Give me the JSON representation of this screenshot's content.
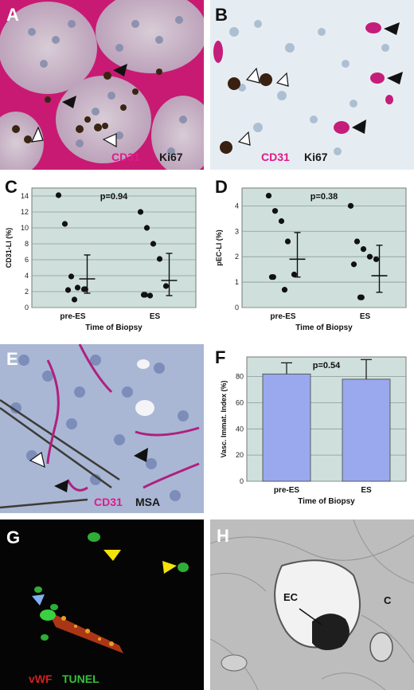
{
  "panels": {
    "A": {
      "letter": "A",
      "stain1": "CD31",
      "stain2": "Ki67"
    },
    "B": {
      "letter": "B",
      "stain1": "CD31",
      "stain2": "Ki67"
    },
    "C": {
      "letter": "C"
    },
    "D": {
      "letter": "D"
    },
    "E": {
      "letter": "E",
      "stain1": "CD31",
      "stain2": "MSA"
    },
    "F": {
      "letter": "F"
    },
    "G": {
      "letter": "G",
      "stain1": "vWF",
      "stain2": "TUNEL"
    },
    "H": {
      "letter": "H",
      "label_ec": "EC",
      "label_c": "C"
    }
  },
  "colors": {
    "plot_bg": "#cfe0dc",
    "bar": "#9aa8ee",
    "magenta": "#d0187a",
    "green": "#35c23a",
    "red": "#d02020",
    "yellow": "#f4e20a",
    "blue_arrow": "#7fb2f0"
  },
  "chart_data": [
    {
      "id": "C",
      "type": "scatter",
      "title": "p=0.94",
      "xlabel": "Time of Biopsy",
      "ylabel": "CD31-LI (%)",
      "categories": [
        "pre-ES",
        "ES"
      ],
      "ylim": [
        0,
        15
      ],
      "yticks": [
        0,
        2,
        4,
        6,
        8,
        10,
        12,
        14
      ],
      "grid": true,
      "series": [
        {
          "category": "pre-ES",
          "values": [
            14.1,
            10.5,
            3.9,
            2.5,
            2.3,
            2.3,
            2.2,
            1.0
          ]
        },
        {
          "category": "ES",
          "values": [
            12.0,
            10.0,
            8.0,
            6.1,
            2.7,
            1.6,
            1.5,
            1.6
          ]
        }
      ],
      "summary": [
        {
          "category": "pre-ES",
          "center": 3.6,
          "low": 1.8,
          "high": 6.6
        },
        {
          "category": "ES",
          "center": 3.4,
          "low": 1.5,
          "high": 6.8
        }
      ]
    },
    {
      "id": "D",
      "type": "scatter",
      "title": "p=0.38",
      "xlabel": "Time of Biopsy",
      "ylabel": "pEC-LI (%)",
      "categories": [
        "pre-ES",
        "ES"
      ],
      "ylim": [
        0,
        4.7
      ],
      "yticks": [
        0,
        1,
        2,
        3,
        4
      ],
      "grid": true,
      "series": [
        {
          "category": "pre-ES",
          "values": [
            4.4,
            3.8,
            3.4,
            2.6,
            1.3,
            1.2,
            1.2,
            0.7
          ]
        },
        {
          "category": "ES",
          "values": [
            4.0,
            2.6,
            2.3,
            2.0,
            1.9,
            1.7,
            0.4,
            0.4
          ]
        }
      ],
      "summary": [
        {
          "category": "pre-ES",
          "center": 1.9,
          "low": 1.2,
          "high": 2.95
        },
        {
          "category": "ES",
          "center": 1.25,
          "low": 0.6,
          "high": 2.45
        }
      ]
    },
    {
      "id": "F",
      "type": "bar",
      "title": "p=0.54",
      "xlabel": "Time of Biopsy",
      "ylabel": "Vasc. Immat. Index (%)",
      "categories": [
        "pre-ES",
        "ES"
      ],
      "values": [
        82,
        78
      ],
      "errors": [
        8.5,
        15
      ],
      "ylim": [
        0,
        95
      ],
      "yticks": [
        0,
        20,
        40,
        60,
        80
      ],
      "grid": true
    }
  ]
}
